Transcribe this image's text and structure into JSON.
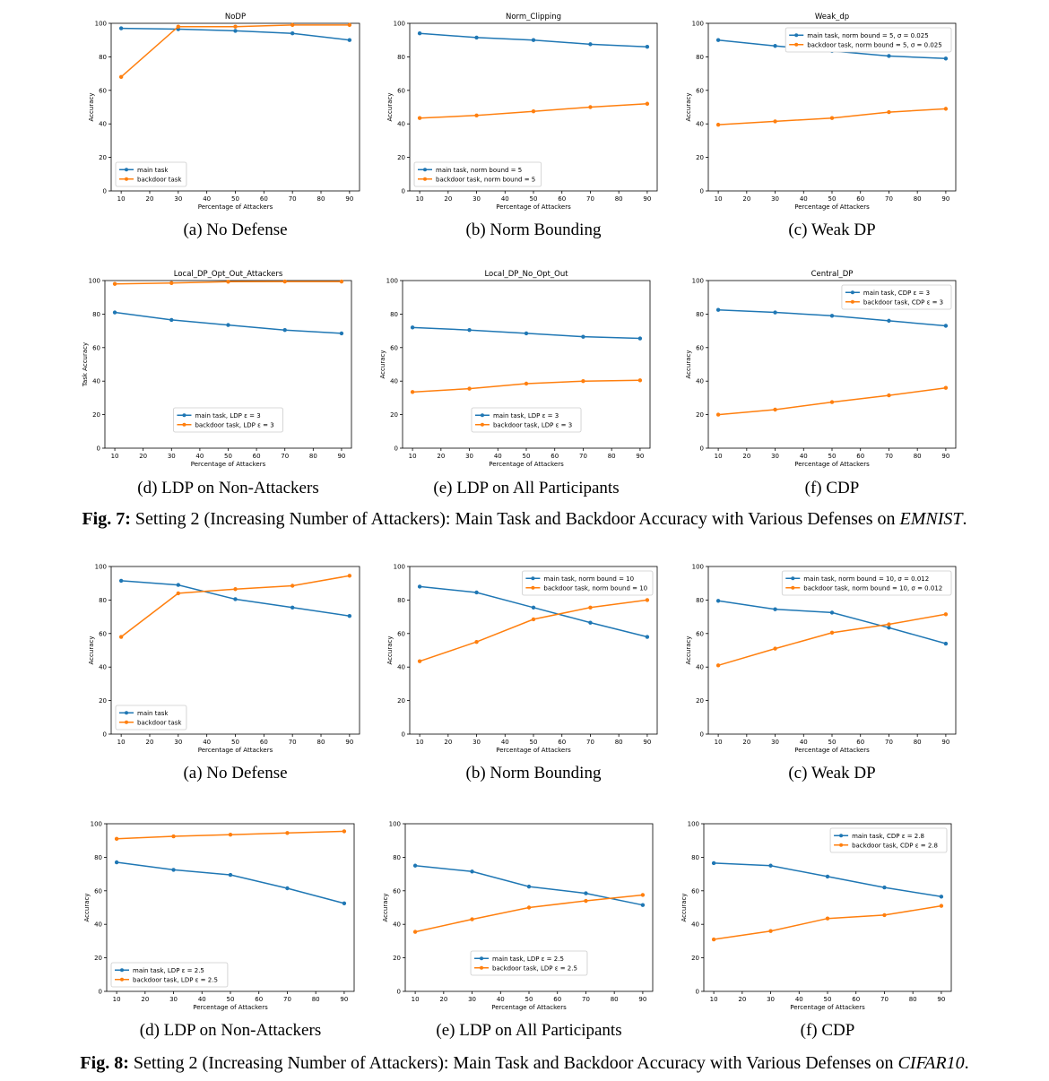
{
  "figures": [
    {
      "caption_label": "Fig. 7:",
      "caption_text": "Setting 2 (Increasing Number of Attackers): Main Task and Backdoor Accuracy with Various Defenses on",
      "caption_dataset": "EMNIST",
      "caption_end": "."
    },
    {
      "caption_label": "Fig. 8:",
      "caption_text": "Setting 2 (Increasing Number of Attackers): Main Task and Backdoor Accuracy with Various Defenses on",
      "caption_dataset": "CIFAR10",
      "caption_end": "."
    }
  ],
  "colors": {
    "main": "#1f77b4",
    "backdoor": "#ff7f0e"
  },
  "chart_data": [
    {
      "type": "line",
      "title": "NoDP",
      "subcaption": "(a) No Defense",
      "xlabel": "Percentage of Attackers",
      "ylabel": "Accuracy",
      "xlim": [
        10,
        90
      ],
      "ylim": [
        0,
        100
      ],
      "xticks": [
        10,
        20,
        30,
        40,
        50,
        60,
        70,
        80,
        90
      ],
      "yticks": [
        0,
        20,
        40,
        60,
        80,
        100
      ],
      "legend_position": "lower-left",
      "x": [
        10,
        30,
        50,
        70,
        90
      ],
      "series": [
        {
          "name": "main task",
          "values": [
            97,
            96.5,
            95.5,
            94,
            90
          ]
        },
        {
          "name": "backdoor task",
          "values": [
            68,
            98,
            98,
            99,
            99
          ]
        }
      ]
    },
    {
      "type": "line",
      "title": "Norm_Clipping",
      "subcaption": "(b) Norm Bounding",
      "xlabel": "Percentage of Attackers",
      "ylabel": "Accuracy",
      "xlim": [
        10,
        90
      ],
      "ylim": [
        0,
        100
      ],
      "xticks": [
        10,
        20,
        30,
        40,
        50,
        60,
        70,
        80,
        90
      ],
      "yticks": [
        0,
        20,
        40,
        60,
        80,
        100
      ],
      "legend_position": "lower-left",
      "x": [
        10,
        30,
        50,
        70,
        90
      ],
      "series": [
        {
          "name": "main task, norm bound = 5",
          "values": [
            94,
            91.5,
            90,
            87.5,
            86
          ]
        },
        {
          "name": "backdoor task, norm bound = 5",
          "values": [
            43.5,
            45,
            47.5,
            50,
            52
          ]
        }
      ]
    },
    {
      "type": "line",
      "title": "Weak_dp",
      "subcaption": "(c) Weak DP",
      "xlabel": "Percentage of Attackers",
      "ylabel": "Accuracy",
      "xlim": [
        10,
        90
      ],
      "ylim": [
        0,
        100
      ],
      "xticks": [
        10,
        20,
        30,
        40,
        50,
        60,
        70,
        80,
        90
      ],
      "yticks": [
        0,
        20,
        40,
        60,
        80,
        100
      ],
      "legend_position": "upper-right",
      "x": [
        10,
        30,
        50,
        70,
        90
      ],
      "series": [
        {
          "name": "main task, norm bound = 5, σ = 0.025",
          "values": [
            90,
            86.5,
            83.5,
            80.5,
            79
          ]
        },
        {
          "name": "backdoor task, norm bound = 5, σ = 0.025",
          "values": [
            39.5,
            41.5,
            43.5,
            47,
            49
          ]
        }
      ]
    },
    {
      "type": "line",
      "title": "Local_DP_Opt_Out_Attackers",
      "subcaption": "(d) LDP on Non-Attackers",
      "xlabel": "Percentage of Attackers",
      "ylabel": "Task Accuracy",
      "xlim": [
        10,
        90
      ],
      "ylim": [
        0,
        100
      ],
      "xticks": [
        10,
        20,
        30,
        40,
        50,
        60,
        70,
        80,
        90
      ],
      "yticks": [
        0,
        20,
        40,
        60,
        80,
        100
      ],
      "legend_position": "lower-center",
      "x": [
        10,
        30,
        50,
        70,
        90
      ],
      "series": [
        {
          "name": "main task, LDP ε = 3",
          "values": [
            81,
            76.5,
            73.5,
            70.5,
            68.5
          ]
        },
        {
          "name": "backdoor task, LDP ε = 3",
          "values": [
            98,
            98.5,
            99.3,
            99.4,
            99.4
          ]
        }
      ]
    },
    {
      "type": "line",
      "title": "Local_DP_No_Opt_Out",
      "subcaption": "(e) LDP on All Participants",
      "xlabel": "Percentage of Attackers",
      "ylabel": "Accuracy",
      "xlim": [
        10,
        90
      ],
      "ylim": [
        0,
        100
      ],
      "xticks": [
        10,
        20,
        30,
        40,
        50,
        60,
        70,
        80,
        90
      ],
      "yticks": [
        0,
        20,
        40,
        60,
        80,
        100
      ],
      "legend_position": "lower-center",
      "x": [
        10,
        30,
        50,
        70,
        90
      ],
      "series": [
        {
          "name": "main task, LDP ε = 3",
          "values": [
            72,
            70.5,
            68.5,
            66.5,
            65.5
          ]
        },
        {
          "name": "backdoor task, LDP ε = 3",
          "values": [
            33.5,
            35.5,
            38.5,
            40,
            40.5
          ]
        }
      ]
    },
    {
      "type": "line",
      "title": "Central_DP",
      "subcaption": "(f) CDP",
      "xlabel": "Percentage of Attackers",
      "ylabel": "Accuracy",
      "xlim": [
        10,
        90
      ],
      "ylim": [
        0,
        100
      ],
      "xticks": [
        10,
        20,
        30,
        40,
        50,
        60,
        70,
        80,
        90
      ],
      "yticks": [
        0,
        20,
        40,
        60,
        80,
        100
      ],
      "legend_position": "upper-right",
      "x": [
        10,
        30,
        50,
        70,
        90
      ],
      "series": [
        {
          "name": "main task, CDP ε = 3",
          "values": [
            82.5,
            81,
            79,
            76,
            73
          ]
        },
        {
          "name": "backdoor task, CDP ε = 3",
          "values": [
            20,
            23,
            27.5,
            31.5,
            36
          ]
        }
      ]
    },
    {
      "type": "line",
      "title": "",
      "subcaption": "(a) No Defense",
      "xlabel": "Percentage of Attackers",
      "ylabel": "Accuracy",
      "xlim": [
        10,
        90
      ],
      "ylim": [
        0,
        100
      ],
      "xticks": [
        10,
        20,
        30,
        40,
        50,
        60,
        70,
        80,
        90
      ],
      "yticks": [
        0,
        20,
        40,
        60,
        80,
        100
      ],
      "legend_position": "lower-left",
      "x": [
        10,
        30,
        50,
        70,
        90
      ],
      "series": [
        {
          "name": "main task",
          "values": [
            91.5,
            89,
            80.5,
            75.5,
            70.5
          ]
        },
        {
          "name": "backdoor task",
          "values": [
            58,
            84,
            86.5,
            88.5,
            94.5
          ]
        }
      ]
    },
    {
      "type": "line",
      "title": "",
      "subcaption": "(b) Norm Bounding",
      "xlabel": "Percentage of Attackers",
      "ylabel": "Accuracy",
      "xlim": [
        10,
        90
      ],
      "ylim": [
        0,
        100
      ],
      "xticks": [
        10,
        20,
        30,
        40,
        50,
        60,
        70,
        80,
        90
      ],
      "yticks": [
        0,
        20,
        40,
        60,
        80,
        100
      ],
      "legend_position": "upper-right",
      "x": [
        10,
        30,
        50,
        70,
        90
      ],
      "series": [
        {
          "name": "main task, norm bound = 10",
          "values": [
            88,
            84.5,
            75.5,
            66.5,
            58
          ]
        },
        {
          "name": "backdoor task, norm bound = 10",
          "values": [
            43.5,
            55,
            68.5,
            75.5,
            80
          ]
        }
      ]
    },
    {
      "type": "line",
      "title": "",
      "subcaption": "(c) Weak DP",
      "xlabel": "Percentage of Attackers",
      "ylabel": "Accuracy",
      "xlim": [
        10,
        90
      ],
      "ylim": [
        0,
        100
      ],
      "xticks": [
        10,
        20,
        30,
        40,
        50,
        60,
        70,
        80,
        90
      ],
      "yticks": [
        0,
        20,
        40,
        60,
        80,
        100
      ],
      "legend_position": "upper-right",
      "x": [
        10,
        30,
        50,
        70,
        90
      ],
      "series": [
        {
          "name": "main task, norm bound = 10, σ = 0.012",
          "values": [
            79.5,
            74.5,
            72.5,
            63.5,
            54
          ]
        },
        {
          "name": "backdoor task, norm bound = 10, σ = 0.012",
          "values": [
            41,
            51,
            60.5,
            65.5,
            71.5
          ]
        }
      ]
    },
    {
      "type": "line",
      "title": "",
      "subcaption": "(d) LDP on Non-Attackers",
      "xlabel": "Percentage of Attackers",
      "ylabel": "Accuracy",
      "xlim": [
        10,
        90
      ],
      "ylim": [
        0,
        100
      ],
      "xticks": [
        10,
        20,
        30,
        40,
        50,
        60,
        70,
        80,
        90
      ],
      "yticks": [
        0,
        20,
        40,
        60,
        80,
        100
      ],
      "legend_position": "lower-left",
      "x": [
        10,
        30,
        50,
        70,
        90
      ],
      "series": [
        {
          "name": "main task, LDP ε = 2.5",
          "values": [
            77,
            72.5,
            69.5,
            61.5,
            52.5
          ]
        },
        {
          "name": "backdoor task, LDP ε = 2.5",
          "values": [
            91,
            92.5,
            93.5,
            94.5,
            95.5
          ]
        }
      ]
    },
    {
      "type": "line",
      "title": "",
      "subcaption": "(e) LDP on All Participants",
      "xlabel": "Percentage of Attackers",
      "ylabel": "Accuracy",
      "xlim": [
        10,
        90
      ],
      "ylim": [
        0,
        100
      ],
      "xticks": [
        10,
        20,
        30,
        40,
        50,
        60,
        70,
        80,
        90
      ],
      "yticks": [
        0,
        20,
        40,
        60,
        80,
        100
      ],
      "legend_position": "lower-center",
      "x": [
        10,
        30,
        50,
        70,
        90
      ],
      "series": [
        {
          "name": "main task, LDP ε = 2.5",
          "values": [
            75,
            71.5,
            62.5,
            58.5,
            51.5
          ]
        },
        {
          "name": "backdoor task, LDP ε = 2.5",
          "values": [
            35.5,
            43,
            50,
            54,
            57.5
          ]
        }
      ]
    },
    {
      "type": "line",
      "title": "",
      "subcaption": "(f) CDP",
      "xlabel": "Percentage of Attackers",
      "ylabel": "Accuracy",
      "xlim": [
        10,
        90
      ],
      "ylim": [
        0,
        100
      ],
      "xticks": [
        10,
        20,
        30,
        40,
        50,
        60,
        70,
        80,
        90
      ],
      "yticks": [
        0,
        20,
        40,
        60,
        80,
        100
      ],
      "legend_position": "upper-right",
      "x": [
        10,
        30,
        50,
        70,
        90
      ],
      "series": [
        {
          "name": "main task, CDP ε = 2.8",
          "values": [
            76.5,
            75,
            68.5,
            62,
            56.5
          ]
        },
        {
          "name": "backdoor task, CDP ε = 2.8",
          "values": [
            31,
            36,
            43.5,
            45.5,
            51
          ]
        }
      ]
    }
  ]
}
